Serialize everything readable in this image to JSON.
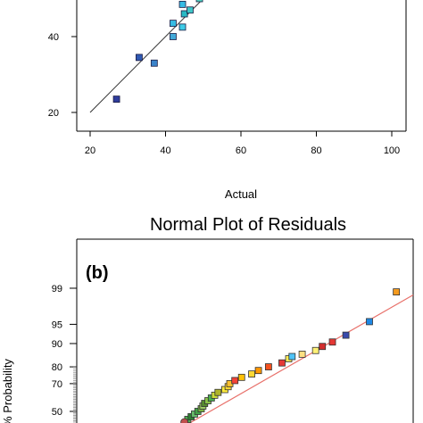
{
  "chart_data": [
    {
      "type": "scatter",
      "title": "",
      "xlabel": "Actual",
      "ylabel": "",
      "xlim": [
        10,
        100
      ],
      "ylim": [
        15,
        53
      ],
      "x_ticks": [
        "20",
        "40",
        "60",
        "80",
        "100"
      ],
      "y_ticks": [
        "20",
        "40"
      ],
      "fit_line": {
        "x": [
          20,
          54
        ],
        "y": [
          20,
          54
        ]
      },
      "points": [
        {
          "x": 27,
          "y": 23.5,
          "color": "#2f3d9c"
        },
        {
          "x": 33,
          "y": 34.5,
          "color": "#2f59b3"
        },
        {
          "x": 37,
          "y": 33,
          "color": "#3a83c9"
        },
        {
          "x": 42,
          "y": 40,
          "color": "#42a9d8"
        },
        {
          "x": 42,
          "y": 43.5,
          "color": "#36bce4"
        },
        {
          "x": 44.5,
          "y": 42.5,
          "color": "#3ecbe6"
        },
        {
          "x": 45,
          "y": 46,
          "color": "#2ab9c4"
        },
        {
          "x": 46.5,
          "y": 47,
          "color": "#3fc6c7"
        },
        {
          "x": 44.5,
          "y": 48.5,
          "color": "#36bce4"
        },
        {
          "x": 49,
          "y": 50,
          "color": "#4fd1c0"
        }
      ]
    },
    {
      "type": "scatter",
      "title": "Normal Plot of Residuals",
      "panel_label": "(b)",
      "xlabel": "",
      "ylabel": "% Probability",
      "y_ticks": [
        "99",
        "95",
        "90",
        "80",
        "70",
        "50"
      ],
      "y_scale": "normal-probability",
      "fit_line": {
        "x": [
          0.3,
          1.0
        ],
        "y_z": [
          -0.35,
          2.2
        ]
      },
      "points": [
        {
          "x": 0.33,
          "y": 44,
          "color": "#4caf50"
        },
        {
          "x": 0.34,
          "y": 46,
          "color": "#2e7d32"
        },
        {
          "x": 0.35,
          "y": 48,
          "color": "#66bb6a"
        },
        {
          "x": 0.36,
          "y": 50,
          "color": "#43a047"
        },
        {
          "x": 0.37,
          "y": 52,
          "color": "#7cb342"
        },
        {
          "x": 0.375,
          "y": 54,
          "color": "#9ccc65"
        },
        {
          "x": 0.38,
          "y": 56,
          "color": "#558b2f"
        },
        {
          "x": 0.39,
          "y": 58,
          "color": "#8bc34a"
        },
        {
          "x": 0.4,
          "y": 60,
          "color": "#4caf50"
        },
        {
          "x": 0.41,
          "y": 62,
          "color": "#cddc39"
        },
        {
          "x": 0.42,
          "y": 64,
          "color": "#afb42b"
        },
        {
          "x": 0.44,
          "y": 66,
          "color": "#ffeb3b"
        },
        {
          "x": 0.45,
          "y": 68,
          "color": "#fdd835"
        },
        {
          "x": 0.455,
          "y": 70,
          "color": "#fbc02d"
        },
        {
          "x": 0.47,
          "y": 72,
          "color": "#f44336"
        },
        {
          "x": 0.49,
          "y": 74,
          "color": "#ffc107"
        },
        {
          "x": 0.52,
          "y": 76,
          "color": "#fdd835"
        },
        {
          "x": 0.54,
          "y": 78,
          "color": "#ff9800"
        },
        {
          "x": 0.57,
          "y": 80,
          "color": "#f4511e"
        },
        {
          "x": 0.61,
          "y": 82,
          "color": "#e53935"
        },
        {
          "x": 0.63,
          "y": 84,
          "color": "#ffee58"
        },
        {
          "x": 0.64,
          "y": 85,
          "color": "#4fc3f7"
        },
        {
          "x": 0.67,
          "y": 86,
          "color": "#ffe082"
        },
        {
          "x": 0.71,
          "y": 87.5,
          "color": "#fff176"
        },
        {
          "x": 0.73,
          "y": 89,
          "color": "#d32f2f"
        },
        {
          "x": 0.76,
          "y": 90.5,
          "color": "#e53935"
        },
        {
          "x": 0.8,
          "y": 92.5,
          "color": "#3949ab"
        },
        {
          "x": 0.87,
          "y": 95.5,
          "color": "#1e88e5"
        },
        {
          "x": 0.95,
          "y": 98.8,
          "color": "#f59b1f"
        },
        {
          "x": 0.32,
          "y": 42,
          "color": "#c0504d",
          "shape": "circle"
        }
      ]
    }
  ]
}
